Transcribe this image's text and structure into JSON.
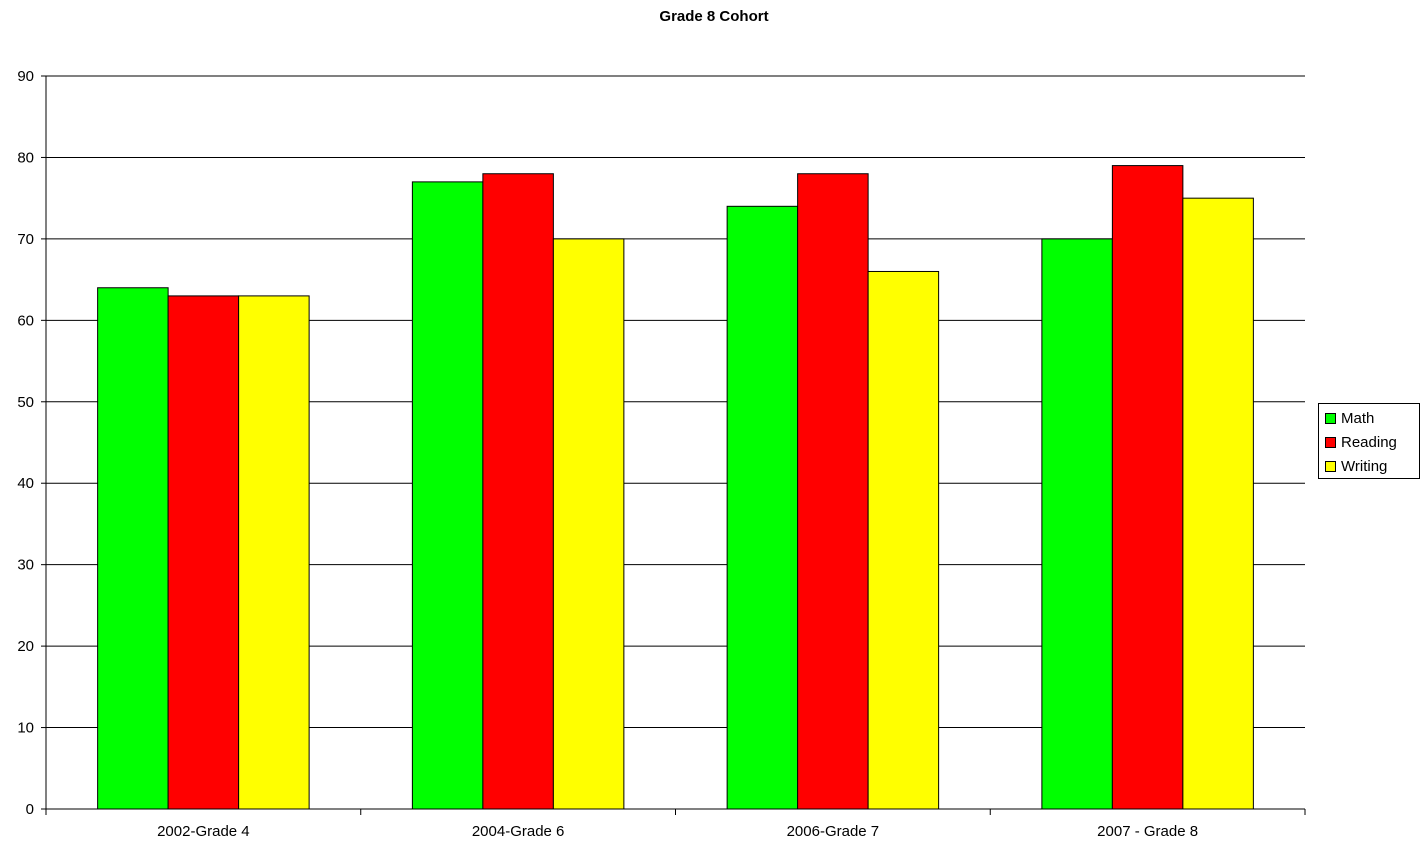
{
  "chart_data": {
    "type": "bar",
    "title": "Grade 8 Cohort",
    "categories": [
      "2002-Grade 4",
      "2004-Grade 6",
      "2006-Grade 7",
      "2007 - Grade 8"
    ],
    "series": [
      {
        "name": "Math",
        "color": "#00ff00",
        "values": [
          64,
          77,
          74,
          70
        ]
      },
      {
        "name": "Reading",
        "color": "#ff0000",
        "values": [
          63,
          78,
          78,
          79
        ]
      },
      {
        "name": "Writing",
        "color": "#ffff00",
        "values": [
          63,
          70,
          66,
          75
        ]
      }
    ],
    "ylim": [
      0,
      90
    ],
    "yticks": [
      0,
      10,
      20,
      30,
      40,
      50,
      60,
      70,
      80,
      90
    ],
    "grid": true,
    "legend": "right"
  }
}
